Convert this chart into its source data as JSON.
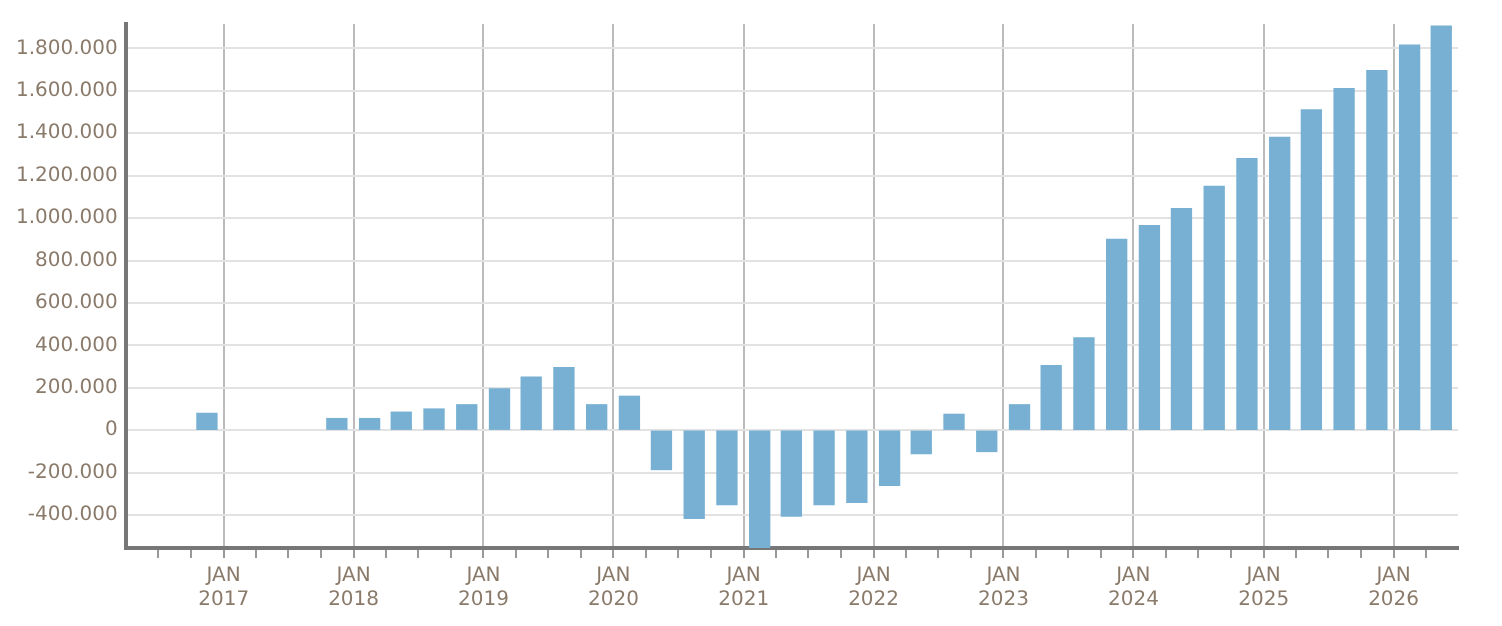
{
  "chart_data": {
    "type": "bar",
    "color": "#77b0d3",
    "x": [
      "2016-11-15",
      "2017-02-15",
      "2017-05-15",
      "2017-08-15",
      "2017-11-15",
      "2018-02-15",
      "2018-05-15",
      "2018-08-15",
      "2018-11-15",
      "2019-02-15",
      "2019-05-15",
      "2019-08-15",
      "2019-11-15",
      "2020-02-15",
      "2020-05-15",
      "2020-08-15",
      "2020-11-15",
      "2021-02-15",
      "2021-05-15",
      "2021-08-15",
      "2021-11-15",
      "2022-02-15",
      "2022-05-15",
      "2022-08-15",
      "2022-11-15",
      "2023-02-15",
      "2023-05-15",
      "2023-08-15",
      "2023-11-15",
      "2024-02-15",
      "2024-05-15",
      "2024-08-15",
      "2024-11-15",
      "2025-02-15",
      "2025-05-15",
      "2025-08-15",
      "2025-11-15",
      "2026-02-15",
      "2026-05-15"
    ],
    "values": [
      80000,
      null,
      null,
      null,
      55000,
      55000,
      85000,
      100000,
      120000,
      195000,
      250000,
      295000,
      120000,
      160000,
      -185000,
      -415000,
      -350000,
      -555000,
      -405000,
      -350000,
      -340000,
      -260000,
      -110000,
      75000,
      -100000,
      120000,
      305000,
      435000,
      900000,
      965000,
      1045000,
      1150000,
      1280000,
      1380000,
      1510000,
      1610000,
      1695000,
      1815000,
      1905000
    ],
    "xlim": [
      "2016-04-01",
      "2026-07-01"
    ],
    "xticks": [
      {
        "value": "2016-07-01",
        "label": null
      },
      {
        "value": "2016-10-01",
        "label": null
      },
      {
        "value": "2017-01-01",
        "label": "JAN 2017"
      },
      {
        "value": "2017-04-01",
        "label": null
      },
      {
        "value": "2017-07-01",
        "label": null
      },
      {
        "value": "2017-10-01",
        "label": null
      },
      {
        "value": "2018-01-01",
        "label": "JAN 2018"
      },
      {
        "value": "2018-04-01",
        "label": null
      },
      {
        "value": "2018-07-01",
        "label": null
      },
      {
        "value": "2018-10-01",
        "label": null
      },
      {
        "value": "2019-01-01",
        "label": "JAN 2019"
      },
      {
        "value": "2019-04-01",
        "label": null
      },
      {
        "value": "2019-07-01",
        "label": null
      },
      {
        "value": "2019-10-01",
        "label": null
      },
      {
        "value": "2020-01-01",
        "label": "JAN 2020"
      },
      {
        "value": "2020-04-01",
        "label": null
      },
      {
        "value": "2020-07-01",
        "label": null
      },
      {
        "value": "2020-10-01",
        "label": null
      },
      {
        "value": "2021-01-01",
        "label": "JAN 2021"
      },
      {
        "value": "2021-04-01",
        "label": null
      },
      {
        "value": "2021-07-01",
        "label": null
      },
      {
        "value": "2021-10-01",
        "label": null
      },
      {
        "value": "2022-01-01",
        "label": "JAN 2022"
      },
      {
        "value": "2022-04-01",
        "label": null
      },
      {
        "value": "2022-07-01",
        "label": null
      },
      {
        "value": "2022-10-01",
        "label": null
      },
      {
        "value": "2023-01-01",
        "label": "JAN 2023"
      },
      {
        "value": "2023-04-01",
        "label": null
      },
      {
        "value": "2023-07-01",
        "label": null
      },
      {
        "value": "2023-10-01",
        "label": null
      },
      {
        "value": "2024-01-01",
        "label": "JAN 2024"
      },
      {
        "value": "2024-04-01",
        "label": null
      },
      {
        "value": "2024-07-01",
        "label": null
      },
      {
        "value": "2024-10-01",
        "label": null
      },
      {
        "value": "2025-01-01",
        "label": "JAN 2025"
      },
      {
        "value": "2025-04-01",
        "label": null
      },
      {
        "value": "2025-07-01",
        "label": null
      },
      {
        "value": "2025-10-01",
        "label": null
      },
      {
        "value": "2026-01-01",
        "label": "JAN 2026"
      },
      {
        "value": "2026-04-01",
        "label": null
      }
    ],
    "ylim": [
      -555000,
      1915000
    ],
    "yticks": [
      {
        "value": -400000,
        "label": "-400.000"
      },
      {
        "value": -200000,
        "label": "-200.000"
      },
      0,
      {
        "value": 200000,
        "label": "200.000"
      },
      {
        "value": 400000,
        "label": "400.000"
      },
      {
        "value": 600000,
        "label": "600.000"
      },
      {
        "value": 800000,
        "label": "800.000"
      },
      {
        "value": 1000000,
        "label": "1.000.000"
      },
      {
        "value": 1200000,
        "label": "1.200.000"
      },
      {
        "value": 1400000,
        "label": "1.400.000"
      },
      {
        "value": 1600000,
        "label": "1.600.000"
      },
      {
        "value": 1800000,
        "label": "1.800.000"
      }
    ],
    "grid": true
  }
}
